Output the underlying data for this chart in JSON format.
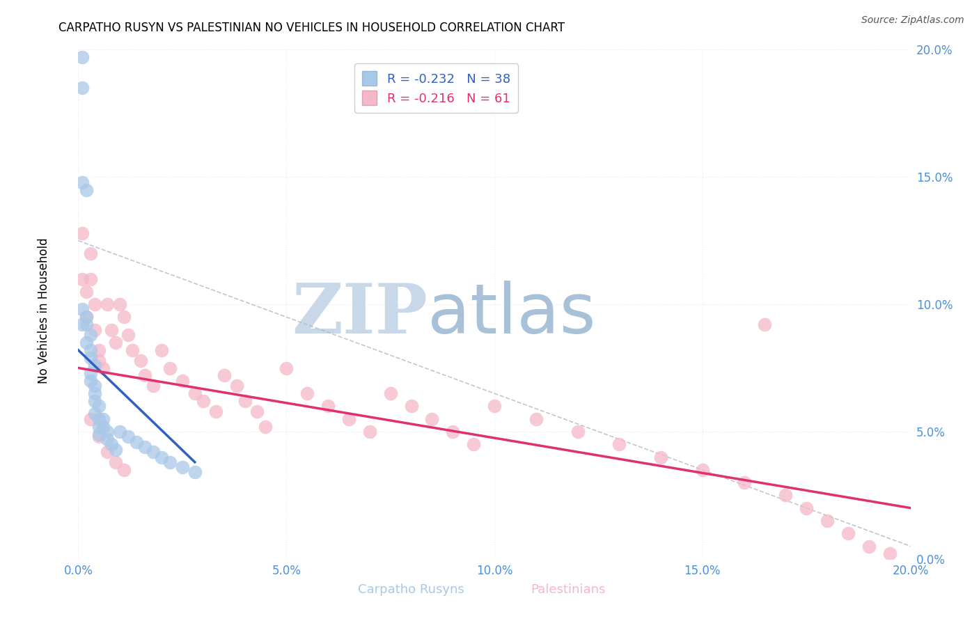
{
  "title": "CARPATHO RUSYN VS PALESTINIAN NO VEHICLES IN HOUSEHOLD CORRELATION CHART",
  "source": "Source: ZipAtlas.com",
  "xlabel_carpatho": "Carpatho Rusyns",
  "xlabel_palestinian": "Palestinians",
  "ylabel": "No Vehicles in Household",
  "xlim": [
    0.0,
    0.2
  ],
  "ylim": [
    0.0,
    0.2
  ],
  "xticks": [
    0.0,
    0.05,
    0.1,
    0.15,
    0.2
  ],
  "yticks": [
    0.0,
    0.05,
    0.1,
    0.15,
    0.2
  ],
  "legend_blue_r": "-0.232",
  "legend_blue_n": "38",
  "legend_pink_r": "-0.216",
  "legend_pink_n": "61",
  "blue_color": "#a8c8e8",
  "pink_color": "#f4b8c8",
  "blue_line_color": "#3060c0",
  "pink_line_color": "#e03070",
  "tick_color": "#4a90d9",
  "watermark_zip_color": "#c8d8e8",
  "watermark_atlas_color": "#a8c0d8",
  "background_color": "#ffffff",
  "grid_color": "#e8e8e8",
  "grid_style": "dotted",
  "blue_scatter_x": [
    0.001,
    0.001,
    0.002,
    0.001,
    0.001,
    0.002,
    0.002,
    0.003,
    0.002,
    0.003,
    0.003,
    0.004,
    0.003,
    0.003,
    0.004,
    0.004,
    0.004,
    0.005,
    0.004,
    0.005,
    0.005,
    0.005,
    0.006,
    0.006,
    0.007,
    0.007,
    0.008,
    0.009,
    0.01,
    0.012,
    0.014,
    0.016,
    0.018,
    0.02,
    0.022,
    0.025,
    0.028,
    0.001
  ],
  "blue_scatter_y": [
    0.197,
    0.185,
    0.145,
    0.148,
    0.098,
    0.095,
    0.092,
    0.088,
    0.085,
    0.082,
    0.079,
    0.076,
    0.073,
    0.07,
    0.068,
    0.065,
    0.062,
    0.06,
    0.057,
    0.055,
    0.052,
    0.049,
    0.055,
    0.052,
    0.05,
    0.047,
    0.045,
    0.043,
    0.05,
    0.048,
    0.046,
    0.044,
    0.042,
    0.04,
    0.038,
    0.036,
    0.034,
    0.092
  ],
  "pink_scatter_x": [
    0.001,
    0.001,
    0.002,
    0.002,
    0.003,
    0.003,
    0.004,
    0.004,
    0.005,
    0.005,
    0.006,
    0.007,
    0.008,
    0.009,
    0.01,
    0.011,
    0.012,
    0.013,
    0.015,
    0.016,
    0.018,
    0.02,
    0.022,
    0.025,
    0.028,
    0.03,
    0.033,
    0.035,
    0.038,
    0.04,
    0.043,
    0.045,
    0.05,
    0.055,
    0.06,
    0.065,
    0.07,
    0.075,
    0.08,
    0.085,
    0.09,
    0.095,
    0.1,
    0.11,
    0.12,
    0.13,
    0.14,
    0.15,
    0.16,
    0.165,
    0.17,
    0.175,
    0.18,
    0.185,
    0.19,
    0.195,
    0.003,
    0.005,
    0.007,
    0.009,
    0.011
  ],
  "pink_scatter_y": [
    0.128,
    0.11,
    0.105,
    0.095,
    0.12,
    0.11,
    0.1,
    0.09,
    0.082,
    0.078,
    0.075,
    0.1,
    0.09,
    0.085,
    0.1,
    0.095,
    0.088,
    0.082,
    0.078,
    0.072,
    0.068,
    0.082,
    0.075,
    0.07,
    0.065,
    0.062,
    0.058,
    0.072,
    0.068,
    0.062,
    0.058,
    0.052,
    0.075,
    0.065,
    0.06,
    0.055,
    0.05,
    0.065,
    0.06,
    0.055,
    0.05,
    0.045,
    0.06,
    0.055,
    0.05,
    0.045,
    0.04,
    0.035,
    0.03,
    0.092,
    0.025,
    0.02,
    0.015,
    0.01,
    0.005,
    0.002,
    0.055,
    0.048,
    0.042,
    0.038,
    0.035
  ],
  "blue_line_x0": 0.0,
  "blue_line_x1": 0.028,
  "blue_line_y0": 0.082,
  "blue_line_y1": 0.038,
  "pink_line_x0": 0.0,
  "pink_line_x1": 0.2,
  "pink_line_y0": 0.075,
  "pink_line_y1": 0.02,
  "dash_line_x0": 0.0,
  "dash_line_x1": 0.2,
  "dash_line_y0": 0.125,
  "dash_line_y1": 0.005
}
